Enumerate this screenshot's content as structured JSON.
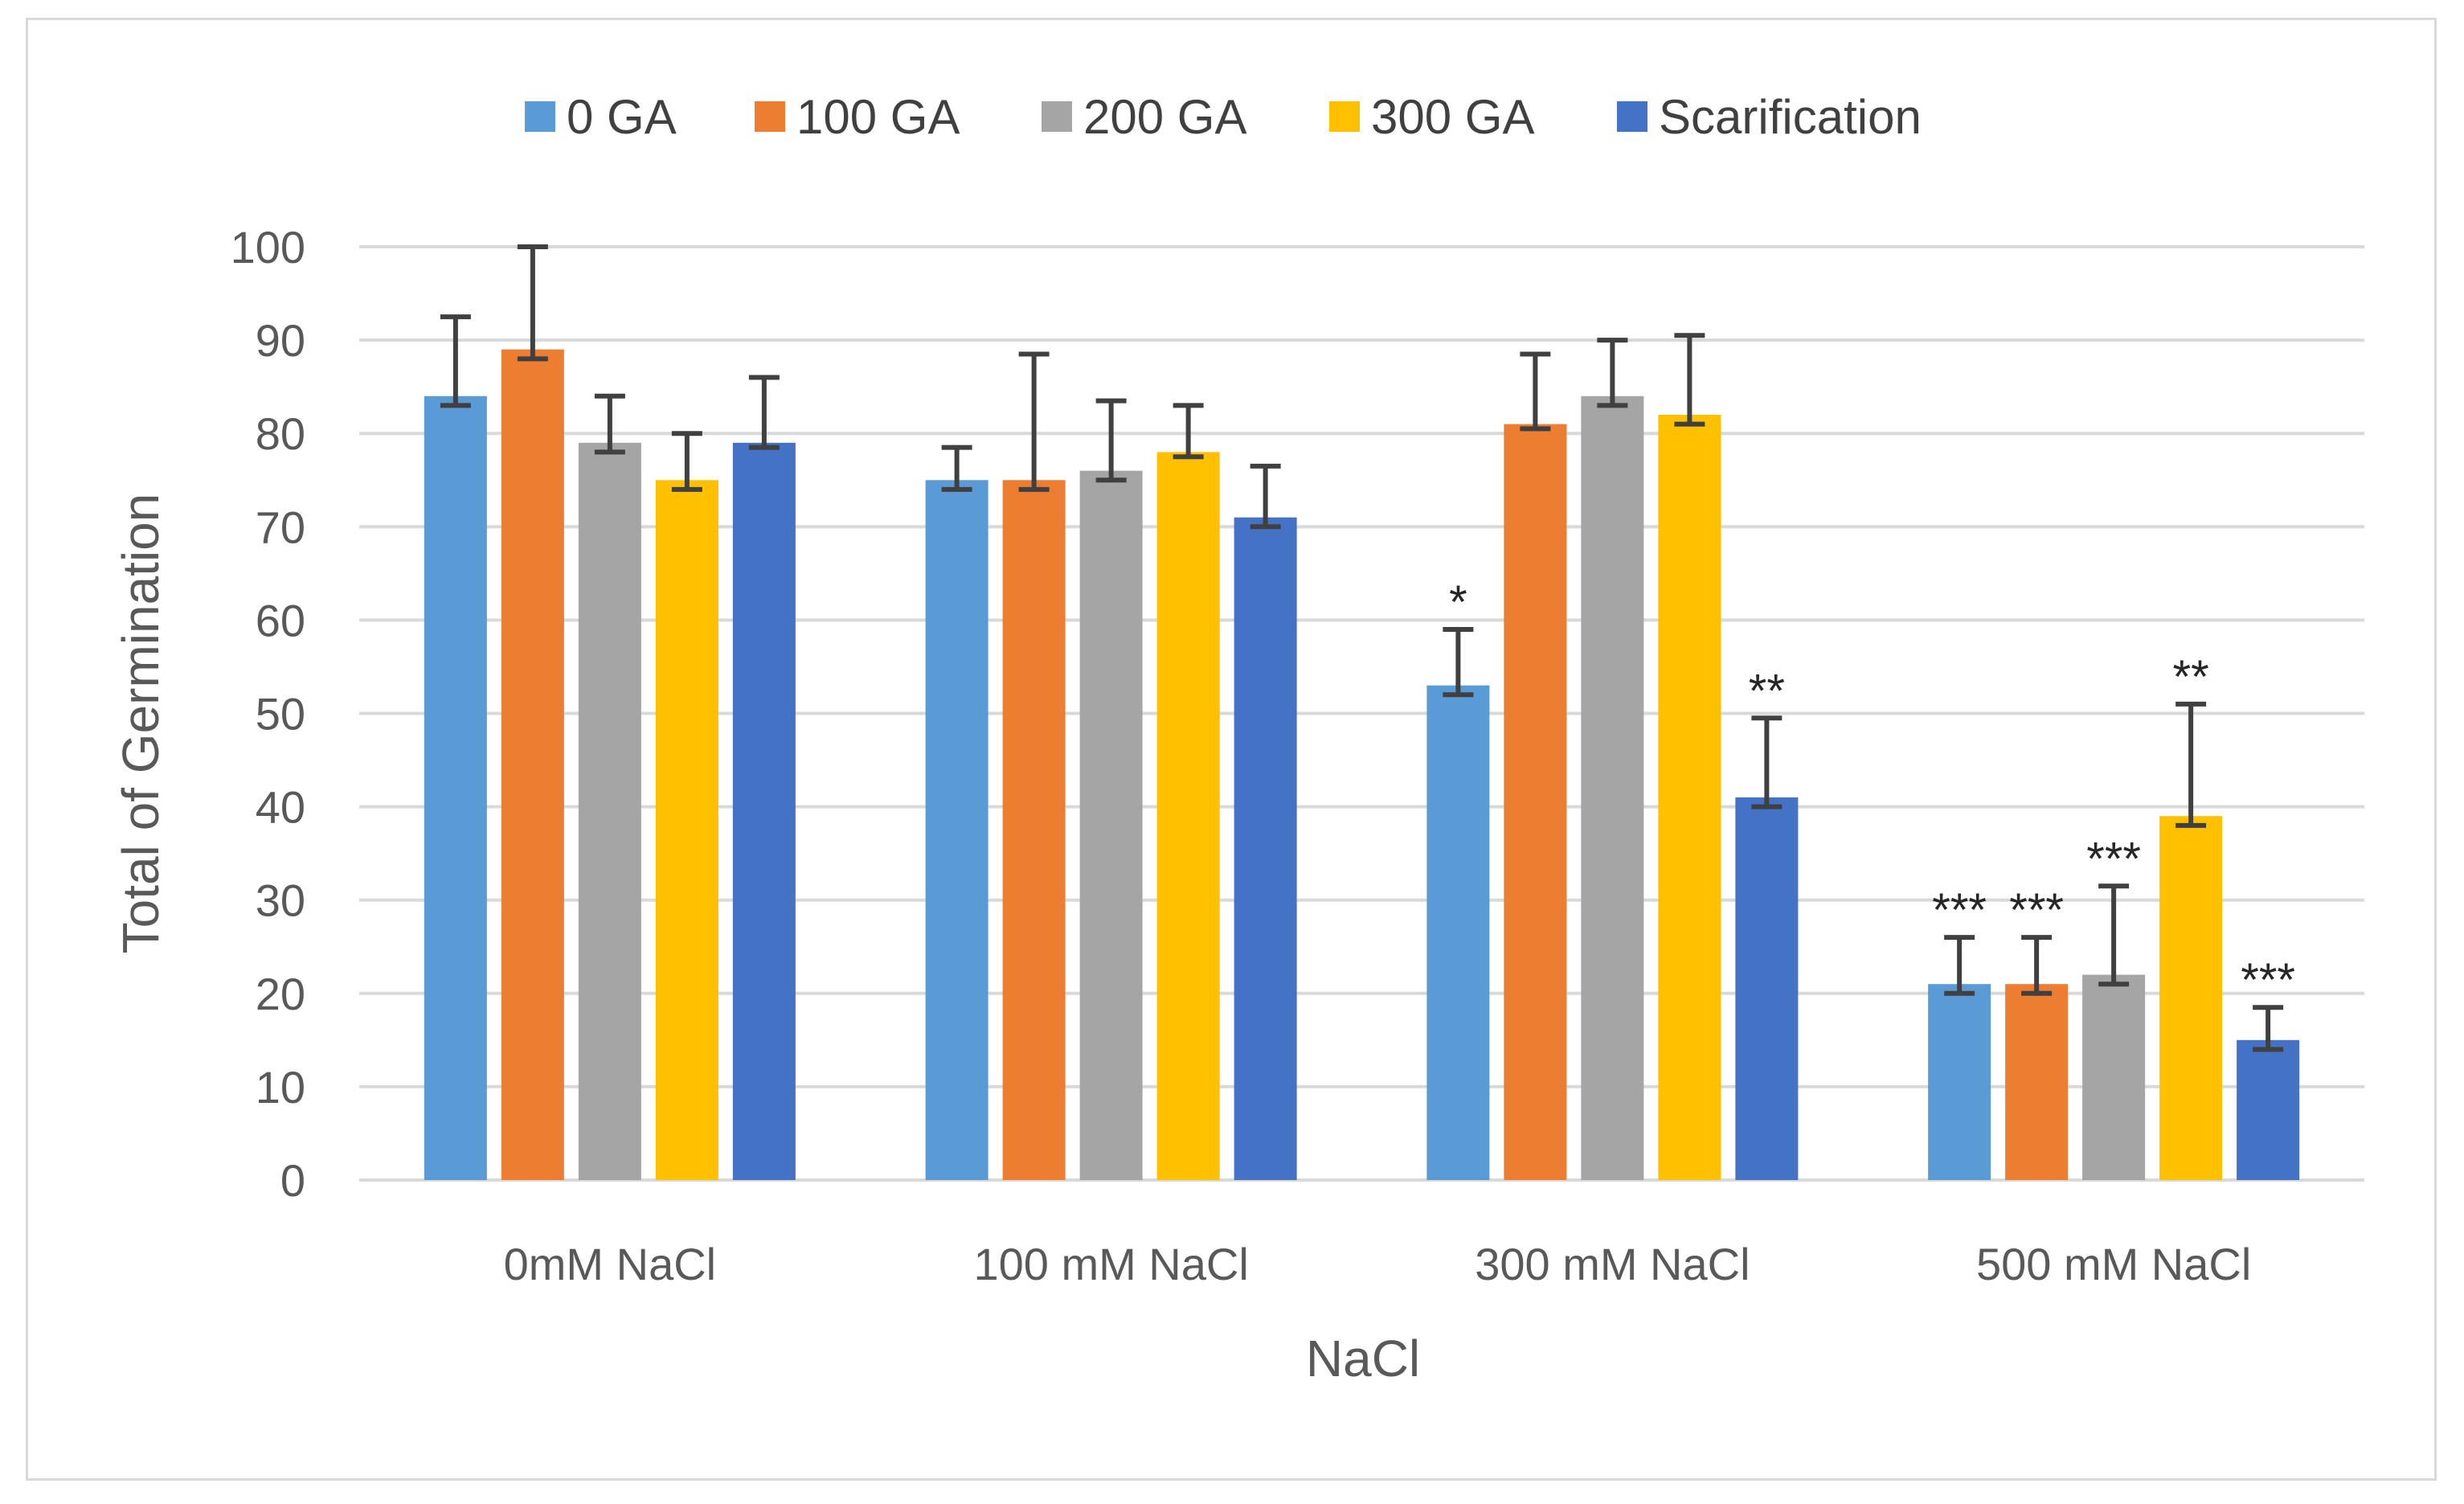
{
  "chart_data": {
    "type": "bar",
    "title": "",
    "xlabel": "NaCl",
    "ylabel": "Total of Germination",
    "ylim": [
      0,
      100
    ],
    "yticks": [
      0,
      10,
      20,
      30,
      40,
      50,
      60,
      70,
      80,
      90,
      100
    ],
    "grid": true,
    "legend_position": "top",
    "categories": [
      "0mM NaCl",
      "100 mM NaCl",
      "300 mM NaCl",
      "500 mM NaCl"
    ],
    "series": [
      {
        "name": "0 GA",
        "color": "#5b9bd5",
        "values": [
          84,
          75,
          53,
          21
        ],
        "err_upper": [
          92.5,
          78.5,
          59,
          26
        ],
        "err_lower": [
          83,
          74,
          52,
          20
        ],
        "significance": [
          "",
          "",
          "*",
          "***"
        ]
      },
      {
        "name": "100 GA",
        "color": "#ed7d31",
        "values": [
          89,
          75,
          81,
          21
        ],
        "err_upper": [
          100,
          88.5,
          88.5,
          26
        ],
        "err_lower": [
          88,
          74,
          80.5,
          20
        ],
        "significance": [
          "",
          "",
          "",
          "***"
        ]
      },
      {
        "name": "200 GA",
        "color": "#a5a5a5",
        "values": [
          79,
          76,
          84,
          22
        ],
        "err_upper": [
          84,
          83.5,
          90,
          31.5
        ],
        "err_lower": [
          78,
          75,
          83,
          21
        ],
        "significance": [
          "",
          "",
          "",
          "***"
        ]
      },
      {
        "name": "300 GA",
        "color": "#ffc000",
        "values": [
          75,
          78,
          82,
          39
        ],
        "err_upper": [
          80,
          83,
          90.5,
          51
        ],
        "err_lower": [
          74,
          77.5,
          81,
          38
        ],
        "significance": [
          "",
          "",
          "",
          "**"
        ]
      },
      {
        "name": "Scarification",
        "color": "#4472c4",
        "values": [
          79,
          71,
          41,
          15
        ],
        "err_upper": [
          86,
          76.5,
          49.5,
          18.5
        ],
        "err_lower": [
          78.5,
          70,
          40,
          14
        ],
        "significance": [
          "",
          "",
          "**",
          "***"
        ]
      }
    ]
  }
}
